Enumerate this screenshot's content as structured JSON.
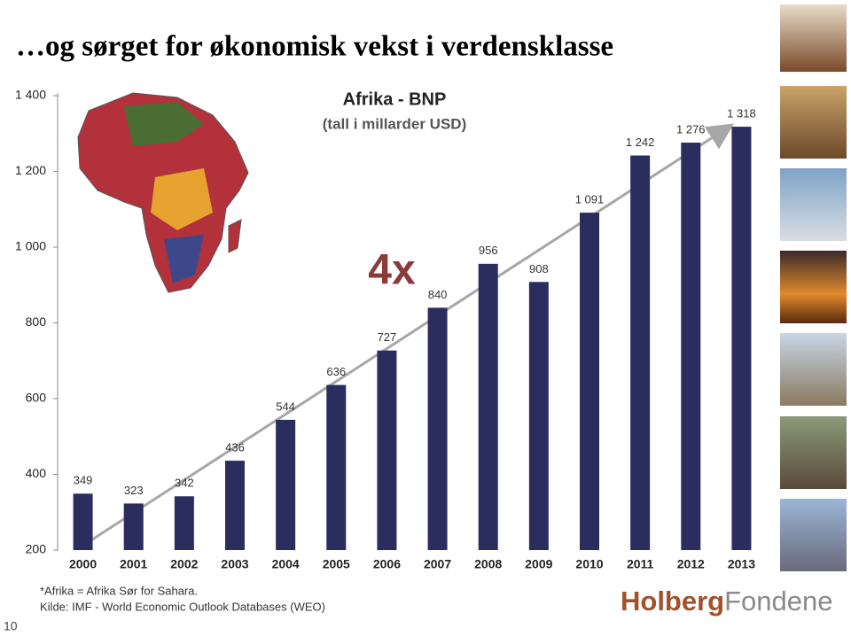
{
  "slide": {
    "title": "…og sørget for økonomisk vekst i verdensklasse",
    "footnotes": [
      "*Afrika = Afrika Sør for Sahara.",
      "Kilde: IMF - World Economic Outlook Databases (WEO)"
    ],
    "logo": {
      "first": "Holberg",
      "second": "Fondene"
    },
    "page_number": 10
  },
  "chart_data": {
    "type": "bar",
    "title": "Afrika - BNP",
    "subtitle": "(tall i millarder USD)",
    "annotation": "4x",
    "categories": [
      "2000",
      "2001",
      "2002",
      "2003",
      "2004",
      "2005",
      "2006",
      "2007",
      "2008",
      "2009",
      "2010",
      "2011",
      "2012",
      "2013"
    ],
    "values": [
      349,
      323,
      342,
      436,
      544,
      636,
      727,
      840,
      956,
      908,
      1091,
      1242,
      1276,
      1318
    ],
    "value_labels": [
      "349",
      "323",
      "342",
      "436",
      "544",
      "636",
      "727",
      "840",
      "956",
      "908",
      "1 091",
      "1 242",
      "1 276",
      "1 318"
    ],
    "color": "#2b2d5e",
    "ylim": [
      200,
      1400
    ],
    "yticks": [
      200,
      400,
      600,
      800,
      {
        "value": 1000,
        "label": "1 000"
      },
      {
        "value": 1200,
        "label": "1 200"
      },
      {
        "value": 1400,
        "label": "1 400"
      }
    ],
    "grid": false
  }
}
